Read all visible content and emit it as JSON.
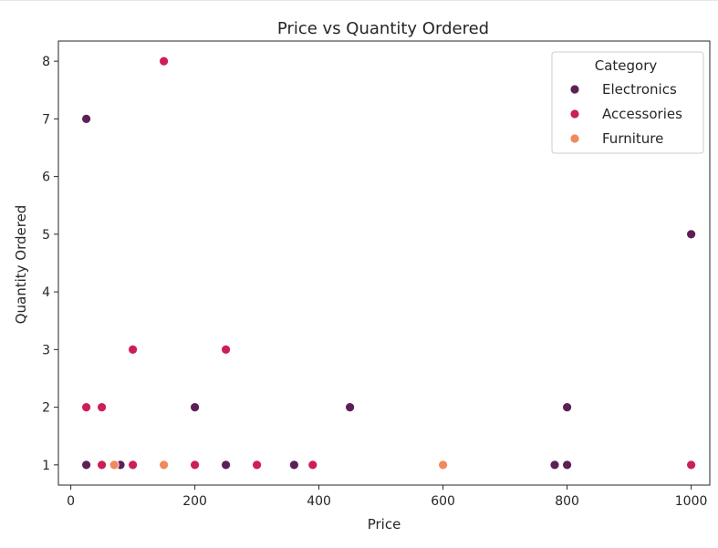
{
  "chart_data": {
    "type": "scatter",
    "title": "Price vs Quantity Ordered",
    "xlabel": "Price",
    "ylabel": "Quantity Ordered",
    "xlim": [
      -20,
      1030
    ],
    "ylim": [
      0.65,
      8.35
    ],
    "xticks": [
      0,
      200,
      400,
      600,
      800,
      1000
    ],
    "yticks": [
      1,
      2,
      3,
      4,
      5,
      6,
      7,
      8
    ],
    "grid": false,
    "legend": {
      "title": "Category",
      "placement": "top-right"
    },
    "series": [
      {
        "name": "Electronics",
        "color": "#5c1f57",
        "points": [
          {
            "x": 25,
            "y": 7
          },
          {
            "x": 25,
            "y": 1
          },
          {
            "x": 80,
            "y": 1
          },
          {
            "x": 200,
            "y": 2
          },
          {
            "x": 250,
            "y": 1
          },
          {
            "x": 360,
            "y": 1
          },
          {
            "x": 450,
            "y": 2
          },
          {
            "x": 780,
            "y": 1
          },
          {
            "x": 800,
            "y": 1
          },
          {
            "x": 800,
            "y": 2
          },
          {
            "x": 1000,
            "y": 5
          }
        ]
      },
      {
        "name": "Accessories",
        "color": "#cc1f55",
        "points": [
          {
            "x": 150,
            "y": 8
          },
          {
            "x": 25,
            "y": 2
          },
          {
            "x": 50,
            "y": 2
          },
          {
            "x": 50,
            "y": 1
          },
          {
            "x": 100,
            "y": 3
          },
          {
            "x": 100,
            "y": 1
          },
          {
            "x": 200,
            "y": 1
          },
          {
            "x": 250,
            "y": 3
          },
          {
            "x": 300,
            "y": 1
          },
          {
            "x": 390,
            "y": 1
          },
          {
            "x": 1000,
            "y": 1
          }
        ]
      },
      {
        "name": "Furniture",
        "color": "#f08a5c",
        "points": [
          {
            "x": 70,
            "y": 1
          },
          {
            "x": 150,
            "y": 1
          },
          {
            "x": 600,
            "y": 1
          }
        ]
      }
    ]
  }
}
